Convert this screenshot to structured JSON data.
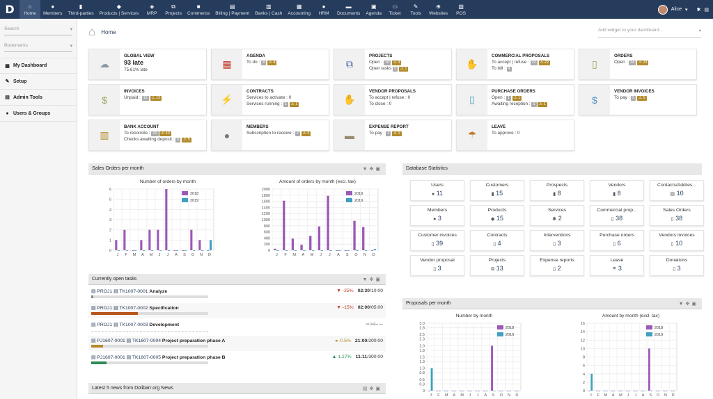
{
  "logo": "D",
  "menus": [
    {
      "label": "Home",
      "icon": "home-icon",
      "glyph": "⌂"
    },
    {
      "label": "Members",
      "icon": "members-icon",
      "glyph": "●"
    },
    {
      "label": "Third-parties",
      "icon": "building-icon",
      "glyph": "▮"
    },
    {
      "label": "Products | Services",
      "icon": "cube-icon",
      "glyph": "◆"
    },
    {
      "label": "MRP",
      "icon": "cubes-icon",
      "glyph": "◈"
    },
    {
      "label": "Projects",
      "icon": "sitemap-icon",
      "glyph": "⧉"
    },
    {
      "label": "Commerce",
      "icon": "suitcase-icon",
      "glyph": "■"
    },
    {
      "label": "Billing | Payment",
      "icon": "money-icon",
      "glyph": "▤"
    },
    {
      "label": "Banks | Cash",
      "icon": "bank-icon",
      "glyph": "▥"
    },
    {
      "label": "Accounting",
      "icon": "calculator-icon",
      "glyph": "▦"
    },
    {
      "label": "HRM",
      "icon": "user-tie-icon",
      "glyph": "●"
    },
    {
      "label": "Documents",
      "icon": "folder-icon",
      "glyph": "▬"
    },
    {
      "label": "Agenda",
      "icon": "calendar-icon",
      "glyph": "▣"
    },
    {
      "label": "Ticket",
      "icon": "ticket-icon",
      "glyph": "▭"
    },
    {
      "label": "Tools",
      "icon": "wrench-icon",
      "glyph": "✎"
    },
    {
      "label": "Websites",
      "icon": "globe-icon",
      "glyph": "⊕"
    },
    {
      "label": "POS",
      "icon": "cash-register-icon",
      "glyph": "▧"
    }
  ],
  "user": {
    "name": "Alice"
  },
  "sidebar": {
    "search_placeholder": "Search",
    "bookmarks_placeholder": "Bookmarks",
    "items": [
      {
        "label": "My Dashboard"
      },
      {
        "label": "Setup"
      },
      {
        "label": "Admin Tools"
      },
      {
        "label": "Users & Groups"
      }
    ]
  },
  "breadcrumb": {
    "home": "Home"
  },
  "widget_select_placeholder": "Add widget to your dashboard...",
  "boxes": [
    {
      "title": "GLOBAL VIEW",
      "big": "93 late",
      "line": "75.61% late"
    },
    {
      "title": "AGENDA",
      "lines": [
        {
          "t": "To do :",
          "g": "4",
          "w": "4"
        }
      ]
    },
    {
      "title": "PROJECTS",
      "lines": [
        {
          "t": "Open :",
          "g": "10",
          "w": "3"
        },
        {
          "t": "Open tasks",
          "g": "5",
          "w": "1"
        }
      ]
    },
    {
      "title": "COMMERCIAL PROPOSALS",
      "lines": [
        {
          "t": "To accept | refuse :",
          "g": "22",
          "w": "22"
        },
        {
          "t": "To bill :",
          "g": "4"
        }
      ]
    },
    {
      "title": "ORDERS",
      "lines": [
        {
          "t": "Open :",
          "g": "24",
          "w": "23"
        }
      ]
    },
    {
      "title": "INVOICES",
      "lines": [
        {
          "t": "Unpaid :",
          "g": "15",
          "w": "12"
        }
      ]
    },
    {
      "title": "CONTRACTS",
      "lines": [
        {
          "t": "Services to activate : 0"
        },
        {
          "t": "Services running :",
          "g": "1",
          "w": "1"
        }
      ]
    },
    {
      "title": "VENDOR PROPOSALS",
      "lines": [
        {
          "t": "To accept | refuse : 0"
        },
        {
          "t": "To close : 0"
        }
      ]
    },
    {
      "title": "PURCHASE ORDERS",
      "lines": [
        {
          "t": "Open :",
          "g": "1",
          "w": "1"
        },
        {
          "t": "Awaiting reception :",
          "g": "1",
          "w": "1"
        }
      ]
    },
    {
      "title": "VENDOR INVOICES",
      "lines": [
        {
          "t": "To pay :",
          "g": "5",
          "w": "5"
        }
      ]
    },
    {
      "title": "BANK ACCOUNT",
      "lines": [
        {
          "t": "To reconcile :",
          "g": "21",
          "w": "12"
        },
        {
          "t": "Checks awaiting deposit :",
          "g": "5",
          "w": "5"
        }
      ]
    },
    {
      "title": "MEMBERS",
      "lines": [
        {
          "t": "Subscription to receive :",
          "g": "2",
          "w": "2"
        }
      ]
    },
    {
      "title": "EXPENSE REPORT",
      "lines": [
        {
          "t": "To pay :",
          "g": "1",
          "w": "1"
        }
      ]
    },
    {
      "title": "LEAVE",
      "lines": [
        {
          "t": "To approve : 0"
        }
      ]
    }
  ],
  "panels": {
    "sales": "Sales Orders per month",
    "tasks": "Currently open tasks",
    "news": "Latest 5 news from Dolibarr.org News",
    "db": "Database Statistics",
    "proposals": "Proposals per month"
  },
  "chart_data": [
    {
      "type": "bar",
      "title": "Number of orders by month",
      "categories": [
        "J",
        "F",
        "M",
        "A",
        "M",
        "J",
        "J",
        "A",
        "S",
        "O",
        "N",
        "D"
      ],
      "ylim": [
        0,
        6
      ],
      "yticks": [
        0,
        1,
        2,
        3,
        4,
        5,
        6
      ],
      "series": [
        {
          "name": "2018",
          "color": "#9b59b6",
          "values": [
            1,
            2,
            0,
            1,
            2,
            2,
            6,
            0,
            0,
            2,
            1,
            0
          ]
        },
        {
          "name": "2019",
          "color": "#3fa0c0",
          "values": [
            0,
            0,
            0,
            0,
            0,
            0,
            0,
            0,
            0,
            0,
            0,
            1
          ]
        }
      ]
    },
    {
      "type": "bar",
      "title": "Amount of orders by month (excl. tax)",
      "categories": [
        "J",
        "F",
        "M",
        "A",
        "M",
        "J",
        "J",
        "A",
        "S",
        "O",
        "N",
        "D"
      ],
      "ylim": [
        0,
        2000
      ],
      "yticks": [
        0,
        200,
        400,
        600,
        800,
        1000,
        1200,
        1400,
        1600,
        1800,
        2000
      ],
      "series": [
        {
          "name": "2018",
          "color": "#9b59b6",
          "values": [
            50,
            1620,
            380,
            180,
            470,
            780,
            1780,
            0,
            0,
            960,
            760,
            0
          ]
        },
        {
          "name": "2019",
          "color": "#3fa0c0",
          "values": [
            0,
            0,
            0,
            0,
            0,
            0,
            0,
            0,
            0,
            0,
            0,
            40
          ]
        }
      ]
    },
    {
      "type": "bar",
      "title": "Number by month",
      "categories": [
        "J",
        "F",
        "M",
        "A",
        "M",
        "J",
        "J",
        "A",
        "S",
        "O",
        "N",
        "D"
      ],
      "ylim": [
        0,
        3
      ],
      "yticks": [
        0,
        0.3,
        0.5,
        0.8,
        1.0,
        1.3,
        1.5,
        1.8,
        2.0,
        2.3,
        2.5,
        2.8,
        3.0
      ],
      "yticklabels": [
        "0",
        "0.3",
        "0.5",
        "0.8",
        "1.0",
        "1.3",
        "1.5",
        "1.8",
        "2.0",
        "2.3",
        "2.5",
        "2.8",
        "3.0"
      ],
      "series": [
        {
          "name": "2018",
          "color": "#9b59b6",
          "values": [
            0,
            0,
            0,
            0,
            0,
            0,
            0,
            0,
            2,
            0,
            0,
            0
          ]
        },
        {
          "name": "2019",
          "color": "#3fa0c0",
          "values": [
            1,
            0,
            0,
            0,
            0,
            0,
            0,
            0,
            0,
            0,
            0,
            0
          ]
        }
      ]
    },
    {
      "type": "bar",
      "title": "Amount by month (excl. tax)",
      "categories": [
        "J",
        "F",
        "M",
        "A",
        "M",
        "J",
        "J",
        "A",
        "S",
        "O",
        "N",
        "D"
      ],
      "ylim": [
        0,
        16
      ],
      "yticks": [
        0,
        2,
        4,
        6,
        8,
        10,
        12,
        14,
        16
      ],
      "series": [
        {
          "name": "2018",
          "color": "#9b59b6",
          "values": [
            0,
            0,
            0,
            0,
            0,
            0,
            0,
            0,
            10,
            0,
            0,
            0
          ]
        },
        {
          "name": "2019",
          "color": "#3fa0c0",
          "values": [
            4,
            0,
            0,
            0,
            0,
            0,
            0,
            0,
            0,
            0,
            0,
            0
          ]
        }
      ]
    }
  ],
  "db_stats": [
    {
      "label": "Users",
      "icon": "user-icon",
      "glyph": "●",
      "value": "11"
    },
    {
      "label": "Customers",
      "icon": "building-icon",
      "glyph": "▮",
      "value": "15"
    },
    {
      "label": "Prospects",
      "icon": "building-icon",
      "glyph": "▮",
      "value": "8"
    },
    {
      "label": "Vendors",
      "icon": "building-icon",
      "glyph": "▮",
      "value": "8"
    },
    {
      "label": "Contacts/Addres...",
      "icon": "address-book-icon",
      "glyph": "▤",
      "value": "10"
    },
    {
      "label": "Members",
      "icon": "user-icon",
      "glyph": "●",
      "value": "3"
    },
    {
      "label": "Products",
      "icon": "cube-icon",
      "glyph": "◆",
      "value": "15"
    },
    {
      "label": "Services",
      "icon": "cogs-icon",
      "glyph": "✱",
      "value": "2"
    },
    {
      "label": "Commercial prop...",
      "icon": "file-icon",
      "glyph": "▯",
      "value": "38"
    },
    {
      "label": "Sales Orders",
      "icon": "file-icon",
      "glyph": "▯",
      "value": "38"
    },
    {
      "label": "Customer invoices",
      "icon": "file-icon",
      "glyph": "▯",
      "value": "39"
    },
    {
      "label": "Contracts",
      "icon": "file-icon",
      "glyph": "▯",
      "value": "4"
    },
    {
      "label": "Interventions",
      "icon": "file-icon",
      "glyph": "▯",
      "value": "3"
    },
    {
      "label": "Purchase orders",
      "icon": "file-icon",
      "glyph": "▯",
      "value": "6"
    },
    {
      "label": "Vendors invoices",
      "icon": "file-icon",
      "glyph": "▯",
      "value": "10"
    },
    {
      "label": "Vendor proposal",
      "icon": "file-icon",
      "glyph": "▯",
      "value": "3"
    },
    {
      "label": "Projects",
      "icon": "sitemap-icon",
      "glyph": "⧉",
      "value": "13"
    },
    {
      "label": "Expense reports",
      "icon": "file-icon",
      "glyph": "▯",
      "value": "2"
    },
    {
      "label": "Leave",
      "icon": "beach-icon",
      "glyph": "☂",
      "value": "3"
    },
    {
      "label": "Donations",
      "icon": "file-icon",
      "glyph": "▯",
      "value": "3"
    }
  ],
  "tasks": [
    {
      "project": "PROJ1",
      "task": "TK1007-0001",
      "name": "Analyze",
      "delta": "-25%",
      "dcolor": "#c0392b",
      "arrow": "▼",
      "time": "02:30",
      "planned": "/10:00",
      "progress": 0.02,
      "color": "#888"
    },
    {
      "project": "PROJ1",
      "task": "TK1007-0002",
      "name": "Specification",
      "delta": "-15%",
      "dcolor": "#c0392b",
      "arrow": "▼",
      "time": "02:00",
      "planned": "/05:00",
      "progress": 0.4,
      "color": "#b8551b",
      "bg": "#ddd"
    },
    {
      "project": "PROJ1",
      "task": "TK1007-0003",
      "name": "Development",
      "delta": "",
      "arrow": "",
      "time": "--:--",
      "planned": "/--:--",
      "progress": 0,
      "color": "#888",
      "nobar": true
    },
    {
      "project": "PJ1607-0001",
      "task": "TK1607-0004",
      "name": "Project preparation phase A",
      "delta": "-0.5%",
      "dcolor": "#b28a2a",
      "arrow": "◂",
      "time": "21:00",
      "planned": "/200:00",
      "progress": 0.1,
      "color": "#b28a2a"
    },
    {
      "project": "PJ1607-0001",
      "task": "TK1607-0005",
      "name": "Project preparation phase B",
      "delta": "1.27%",
      "dcolor": "#2e8b57",
      "arrow": "▲",
      "time": "11:11",
      "planned": "/300:00",
      "progress": 0.13,
      "color": "#2e8b57"
    }
  ]
}
